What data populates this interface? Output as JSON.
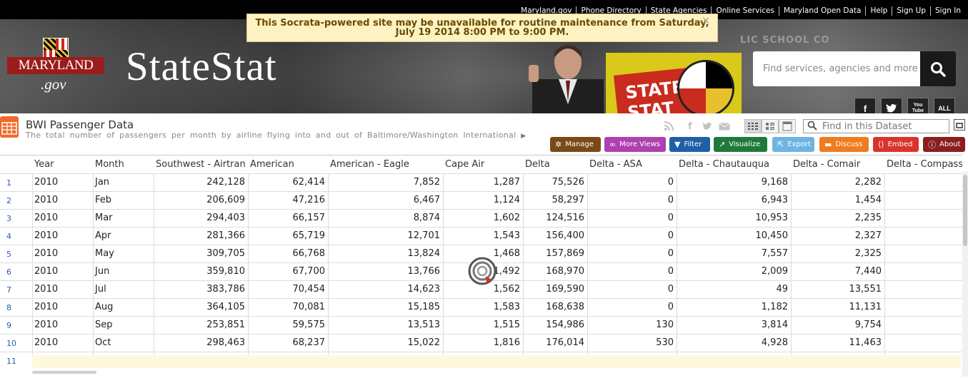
{
  "top_links": [
    "Maryland.gov",
    "Phone Directory",
    "State Agencies",
    "Online Services",
    "Maryland Open Data",
    "Help",
    "Sign Up",
    "Sign In"
  ],
  "logo": {
    "word": "MARYLAND",
    "gov": ".gov"
  },
  "site_title": "StateStat",
  "search": {
    "placeholder": "Find services, agencies and more"
  },
  "social": {
    "facebook": "f",
    "youtube": "You Tube",
    "all": "ALL"
  },
  "poster_text": "STATE STAT",
  "background_text": "LIC SCHOOL CO",
  "banner": {
    "line1": "This Socrata-powered site may be unavailable for routine maintenance from  Saturday,",
    "line2": "July 19 2014 8:00 PM to  9:00 PM.",
    "close": "×"
  },
  "dataset": {
    "title": "BWI Passenger Data",
    "description": "The total number of passengers per month by airline flying into and out of Baltimore/Washington International",
    "find_placeholder": "Find in this Dataset"
  },
  "toolbar": [
    {
      "label": "Manage",
      "icon": "gear-icon",
      "color": "#7a4a16"
    },
    {
      "label": "More Views",
      "icon": "binoculars-icon",
      "color": "#b040b0"
    },
    {
      "label": "Filter",
      "icon": "funnel-icon",
      "color": "#1f5fa8"
    },
    {
      "label": "Visualize",
      "icon": "chart-icon",
      "color": "#1e7a3a"
    },
    {
      "label": "Export",
      "icon": "export-icon",
      "color": "#6fb3e3"
    },
    {
      "label": "Discuss",
      "icon": "speech-bubble-icon",
      "color": "#f07c1e"
    },
    {
      "label": "Embed",
      "icon": "code-icon",
      "color": "#d9342b"
    },
    {
      "label": "About",
      "icon": "info-icon",
      "color": "#8a1e1e"
    }
  ],
  "columns": [
    "Year",
    "Month",
    "Southwest - Airtran",
    "American",
    "American - Eagle",
    "Cape Air",
    "Delta",
    "Delta - ASA",
    "Delta - Chautauqua",
    "Delta - Comair",
    "Delta - Compass"
  ],
  "rows": [
    [
      "1",
      "2010",
      "Jan",
      "242,128",
      "62,414",
      "7,852",
      "1,287",
      "75,526",
      "0",
      "9,168",
      "2,282",
      ""
    ],
    [
      "2",
      "2010",
      "Feb",
      "206,609",
      "47,216",
      "6,467",
      "1,124",
      "58,297",
      "0",
      "6,943",
      "1,454",
      ""
    ],
    [
      "3",
      "2010",
      "Mar",
      "294,403",
      "66,157",
      "8,874",
      "1,602",
      "124,516",
      "0",
      "10,953",
      "2,235",
      ""
    ],
    [
      "4",
      "2010",
      "Apr",
      "281,366",
      "65,719",
      "12,701",
      "1,543",
      "156,400",
      "0",
      "10,450",
      "2,327",
      ""
    ],
    [
      "5",
      "2010",
      "May",
      "309,705",
      "66,768",
      "13,824",
      "1,468",
      "157,869",
      "0",
      "7,557",
      "2,325",
      ""
    ],
    [
      "6",
      "2010",
      "Jun",
      "359,810",
      "67,700",
      "13,766",
      "1,492",
      "168,970",
      "0",
      "2,009",
      "7,440",
      ""
    ],
    [
      "7",
      "2010",
      "Jul",
      "383,786",
      "70,454",
      "14,623",
      "1,562",
      "169,590",
      "0",
      "49",
      "13,551",
      ""
    ],
    [
      "8",
      "2010",
      "Aug",
      "364,105",
      "70,081",
      "15,185",
      "1,583",
      "168,638",
      "0",
      "1,182",
      "11,131",
      ""
    ],
    [
      "9",
      "2010",
      "Sep",
      "253,851",
      "59,575",
      "13,513",
      "1,515",
      "154,986",
      "130",
      "3,814",
      "9,754",
      ""
    ],
    [
      "10",
      "2010",
      "Oct",
      "298,463",
      "68,237",
      "15,022",
      "1,816",
      "176,014",
      "530",
      "4,928",
      "11,463",
      ""
    ]
  ],
  "last_row_number": "11"
}
